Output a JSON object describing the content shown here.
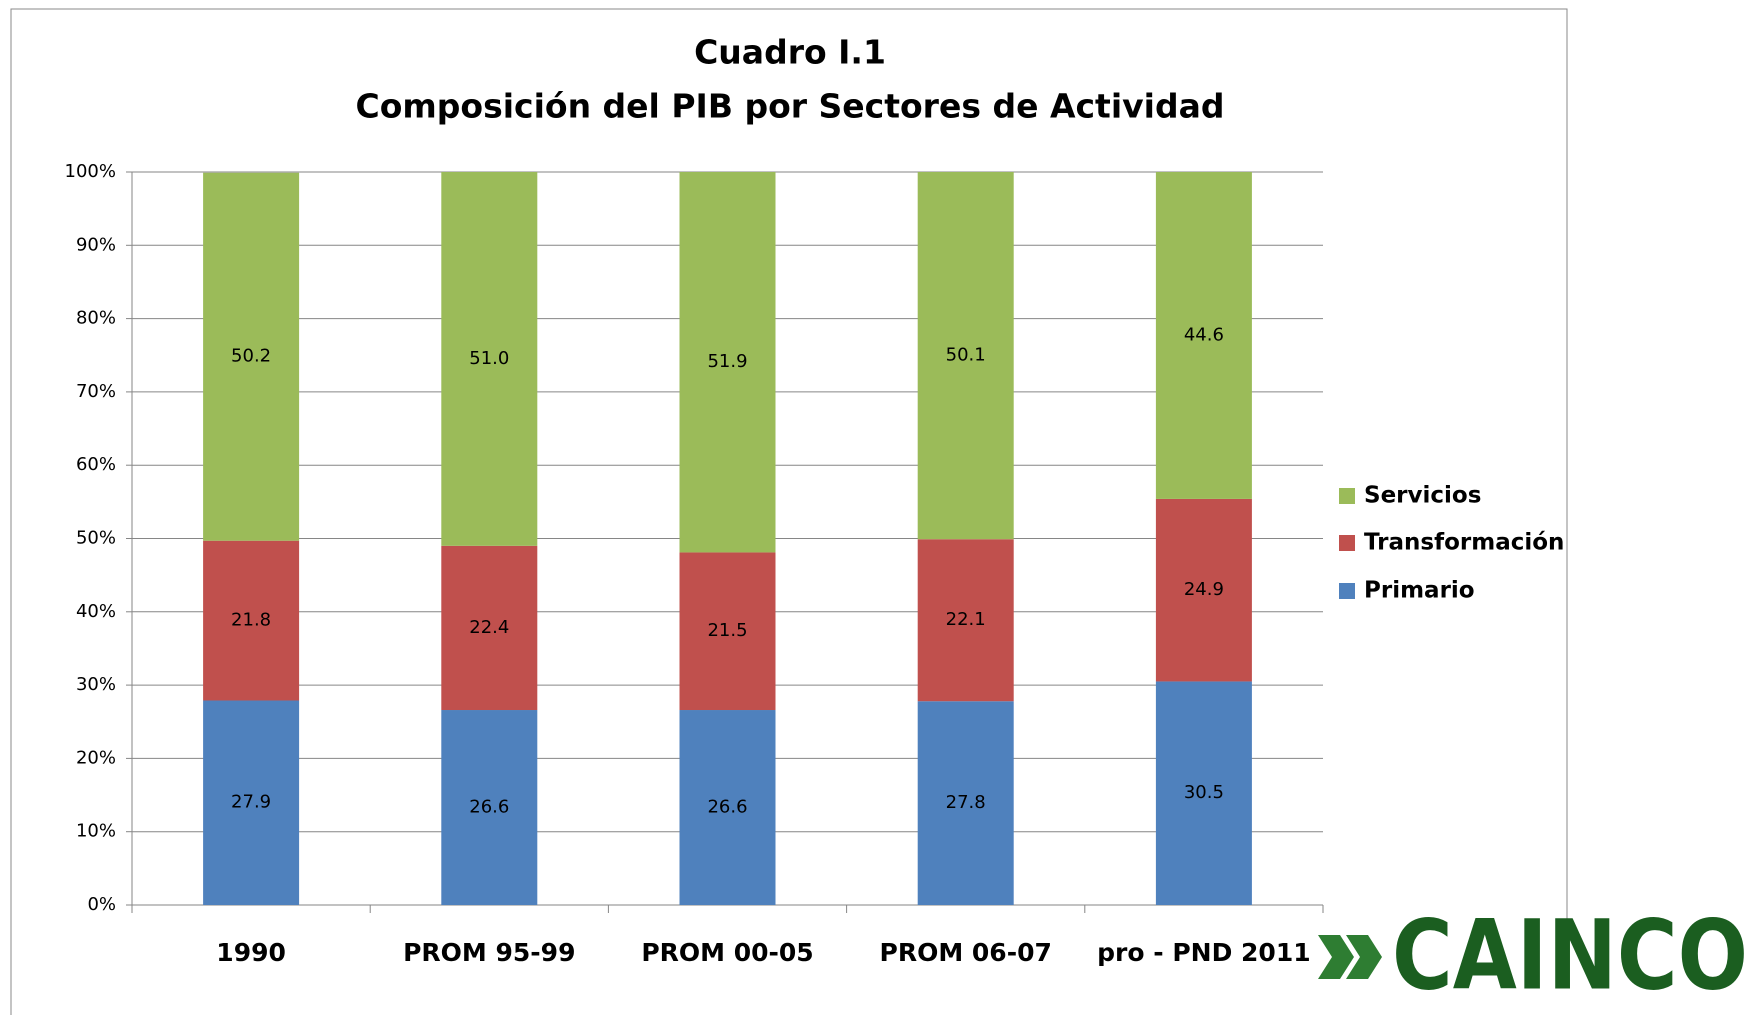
{
  "chart_data": {
    "type": "stacked_bar",
    "title": "Cuadro I.1",
    "subtitle": "Composición del PIB por Sectores de Actividad",
    "categories": [
      "1990",
      "PROM 95-99",
      "PROM 00-05",
      "PROM 06-07",
      "pro - PND 2011"
    ],
    "series": [
      {
        "name": "Primario",
        "color": "#4f81bd",
        "values": [
          27.9,
          26.6,
          26.6,
          27.8,
          30.5
        ],
        "value_labels": [
          "27.9",
          "26.6",
          "26.6",
          "27.8",
          "30.5"
        ]
      },
      {
        "name": "Transformación",
        "color": "#c0504d",
        "values": [
          21.8,
          22.4,
          21.5,
          22.1,
          24.9
        ],
        "value_labels": [
          "21.8",
          "22.4",
          "21.5",
          "22.1",
          "24.9"
        ]
      },
      {
        "name": "Servicios",
        "color": "#9bbb59",
        "values": [
          50.2,
          51.0,
          51.9,
          50.1,
          44.6
        ],
        "value_labels": [
          "50.2",
          "51.0",
          "51.9",
          "50.1",
          "44.6"
        ]
      }
    ],
    "ylim": [
      0,
      100
    ],
    "yticks": [
      {
        "value": 0,
        "label": "0%"
      },
      {
        "value": 10,
        "label": "10%"
      },
      {
        "value": 20,
        "label": "20%"
      },
      {
        "value": 30,
        "label": "30%"
      },
      {
        "value": 40,
        "label": "40%"
      },
      {
        "value": 50,
        "label": "50%"
      },
      {
        "value": 60,
        "label": "60%"
      },
      {
        "value": 70,
        "label": "70%"
      },
      {
        "value": 80,
        "label": "80%"
      },
      {
        "value": 90,
        "label": "90%"
      },
      {
        "value": 100,
        "label": "100%"
      }
    ],
    "grid": true,
    "legend": "right"
  },
  "logo": {
    "text": "CAINCO"
  }
}
